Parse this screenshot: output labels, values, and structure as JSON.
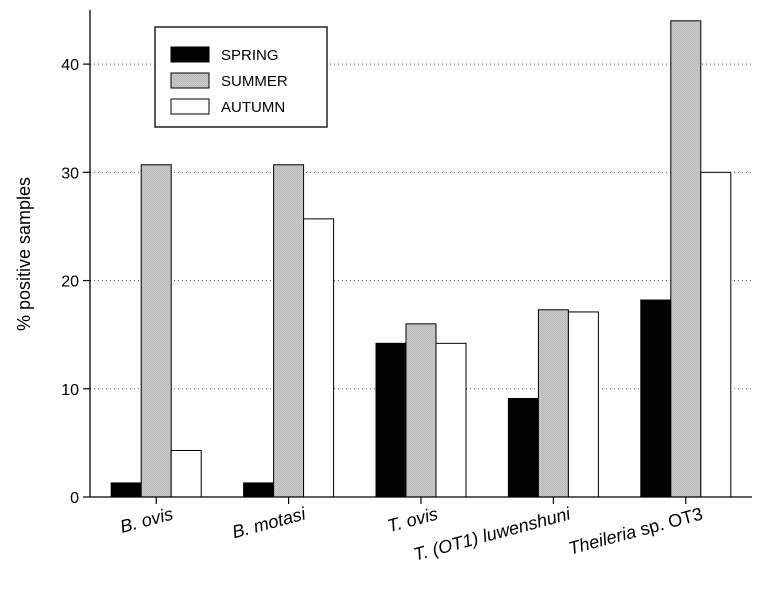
{
  "chart_data": {
    "type": "bar",
    "title": "",
    "xlabel": "",
    "ylabel": "% positive samples",
    "ylim": [
      0,
      45
    ],
    "yticks": [
      0,
      10,
      20,
      30,
      40
    ],
    "grid": "horizontal-dotted",
    "legend_position": "top-left",
    "categories": [
      [
        {
          "text": "B. ovis",
          "italic": true
        }
      ],
      [
        {
          "text": "B. motasi",
          "italic": true
        }
      ],
      [
        {
          "text": "T. ovis",
          "italic": true
        }
      ],
      [
        {
          "text": "T. (OT1) ",
          "italic": true
        },
        {
          "text": "luwenshuni",
          "italic": true
        }
      ],
      [
        {
          "text": "Theileria",
          "italic": true
        },
        {
          "text": " sp. OT3",
          "italic": false
        }
      ]
    ],
    "series": [
      {
        "name": "SPRING",
        "color": "#000000",
        "values": [
          1.3,
          1.3,
          14.2,
          9.1,
          18.2
        ]
      },
      {
        "name": "SUMMER",
        "color": "#c8c8c8",
        "values": [
          30.7,
          30.7,
          16.0,
          17.3,
          44.0
        ]
      },
      {
        "name": "AUTUMN",
        "color": "#ffffff",
        "values": [
          4.3,
          25.7,
          14.2,
          17.1,
          30.0
        ]
      }
    ]
  }
}
